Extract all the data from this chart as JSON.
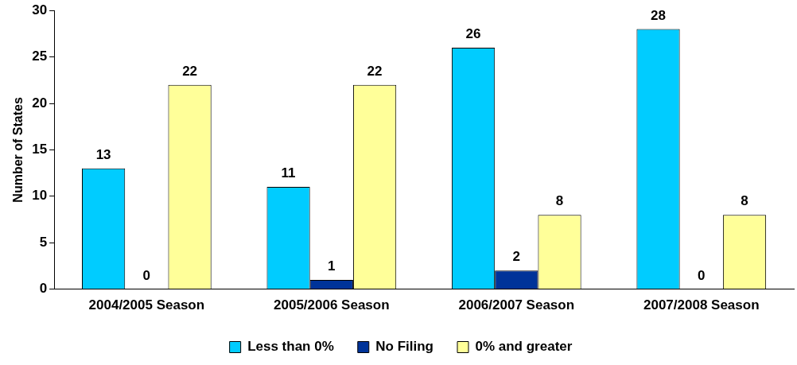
{
  "chart_data": {
    "type": "bar",
    "ylabel": "Number of States",
    "categories": [
      "2004/2005 Season",
      "2005/2006 Season",
      "2006/2007 Season",
      "2007/2008 Season"
    ],
    "series": [
      {
        "name": "Less than 0%",
        "color": "#00ccff",
        "values": [
          13,
          11,
          26,
          28
        ]
      },
      {
        "name": "No Filing",
        "color": "#003399",
        "values": [
          0,
          1,
          2,
          0
        ]
      },
      {
        "name": "0% and greater",
        "color": "#ffff99",
        "values": [
          22,
          22,
          8,
          8
        ]
      }
    ],
    "ylim": [
      0,
      30
    ],
    "yticks": [
      0,
      5,
      10,
      15,
      20,
      25,
      30
    ],
    "grid": false,
    "legend": "bottom",
    "data_labels": true
  }
}
